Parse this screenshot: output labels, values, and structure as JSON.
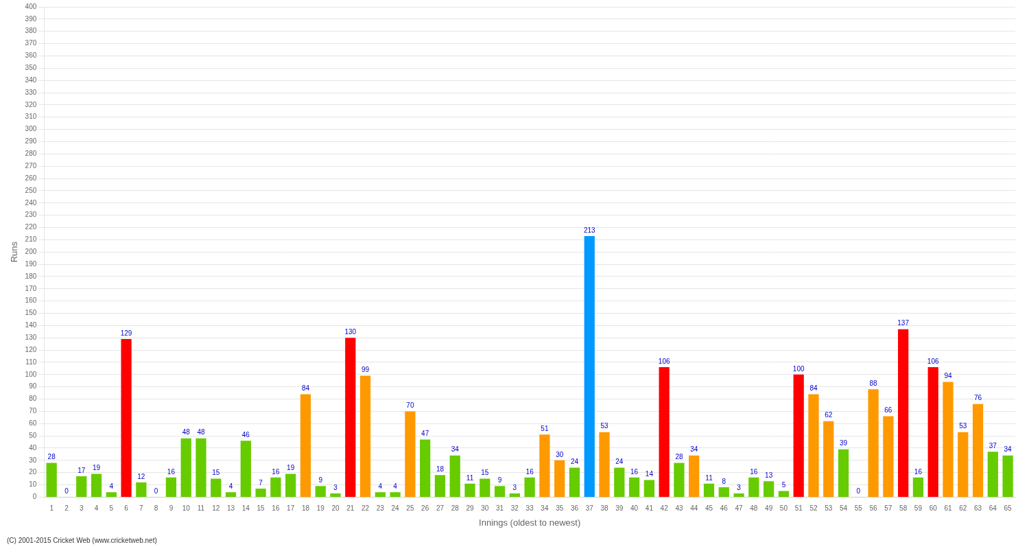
{
  "chart_data": {
    "type": "bar",
    "xlabel": "Innings (oldest to newest)",
    "ylabel": "Runs",
    "categories": [
      "1",
      "2",
      "3",
      "4",
      "5",
      "6",
      "7",
      "8",
      "9",
      "10",
      "11",
      "12",
      "13",
      "14",
      "15",
      "16",
      "17",
      "18",
      "19",
      "20",
      "21",
      "22",
      "23",
      "24",
      "25",
      "26",
      "27",
      "28",
      "29",
      "30",
      "31",
      "32",
      "33",
      "34",
      "35",
      "36",
      "37",
      "38",
      "39",
      "40",
      "41",
      "42",
      "43",
      "44",
      "45",
      "46",
      "47",
      "48",
      "49",
      "50",
      "51",
      "52",
      "53",
      "54",
      "55",
      "56",
      "57",
      "58",
      "59",
      "60",
      "61",
      "62",
      "63",
      "64",
      "65"
    ],
    "values": [
      28,
      0,
      17,
      19,
      4,
      129,
      12,
      0,
      16,
      48,
      48,
      15,
      4,
      46,
      7,
      16,
      19,
      84,
      9,
      3,
      130,
      99,
      4,
      4,
      70,
      47,
      18,
      34,
      11,
      15,
      9,
      3,
      16,
      51,
      30,
      24,
      213,
      53,
      24,
      16,
      14,
      106,
      28,
      34,
      11,
      8,
      3,
      16,
      13,
      5,
      100,
      84,
      62,
      39,
      0,
      88,
      66,
      137,
      16,
      106,
      94,
      53,
      76,
      37,
      34
    ],
    "colors": [
      "#66cc00",
      "#66cc00",
      "#66cc00",
      "#66cc00",
      "#66cc00",
      "#ff0000",
      "#66cc00",
      "#66cc00",
      "#66cc00",
      "#66cc00",
      "#66cc00",
      "#66cc00",
      "#66cc00",
      "#66cc00",
      "#66cc00",
      "#66cc00",
      "#66cc00",
      "#ff9900",
      "#66cc00",
      "#66cc00",
      "#ff0000",
      "#ff9900",
      "#66cc00",
      "#66cc00",
      "#ff9900",
      "#66cc00",
      "#66cc00",
      "#66cc00",
      "#66cc00",
      "#66cc00",
      "#66cc00",
      "#66cc00",
      "#66cc00",
      "#ff9900",
      "#ff9900",
      "#66cc00",
      "#0099ff",
      "#ff9900",
      "#66cc00",
      "#66cc00",
      "#66cc00",
      "#ff0000",
      "#66cc00",
      "#ff9900",
      "#66cc00",
      "#66cc00",
      "#66cc00",
      "#66cc00",
      "#66cc00",
      "#66cc00",
      "#ff0000",
      "#ff9900",
      "#ff9900",
      "#66cc00",
      "#66cc00",
      "#ff9900",
      "#ff9900",
      "#ff0000",
      "#66cc00",
      "#ff0000",
      "#ff9900",
      "#ff9900",
      "#ff9900",
      "#66cc00",
      "#66cc00"
    ],
    "ylim": [
      0,
      400
    ],
    "yticks": [
      0,
      10,
      20,
      30,
      40,
      50,
      60,
      70,
      80,
      90,
      100,
      110,
      120,
      130,
      140,
      150,
      160,
      170,
      180,
      190,
      200,
      210,
      220,
      230,
      240,
      250,
      260,
      270,
      280,
      290,
      300,
      310,
      320,
      330,
      340,
      350,
      360,
      370,
      380,
      390,
      400
    ],
    "grid": true,
    "data_labels": true,
    "annotations": [
      "(C) 2001-2015 Cricket Web (www.cricketweb.net)"
    ]
  }
}
